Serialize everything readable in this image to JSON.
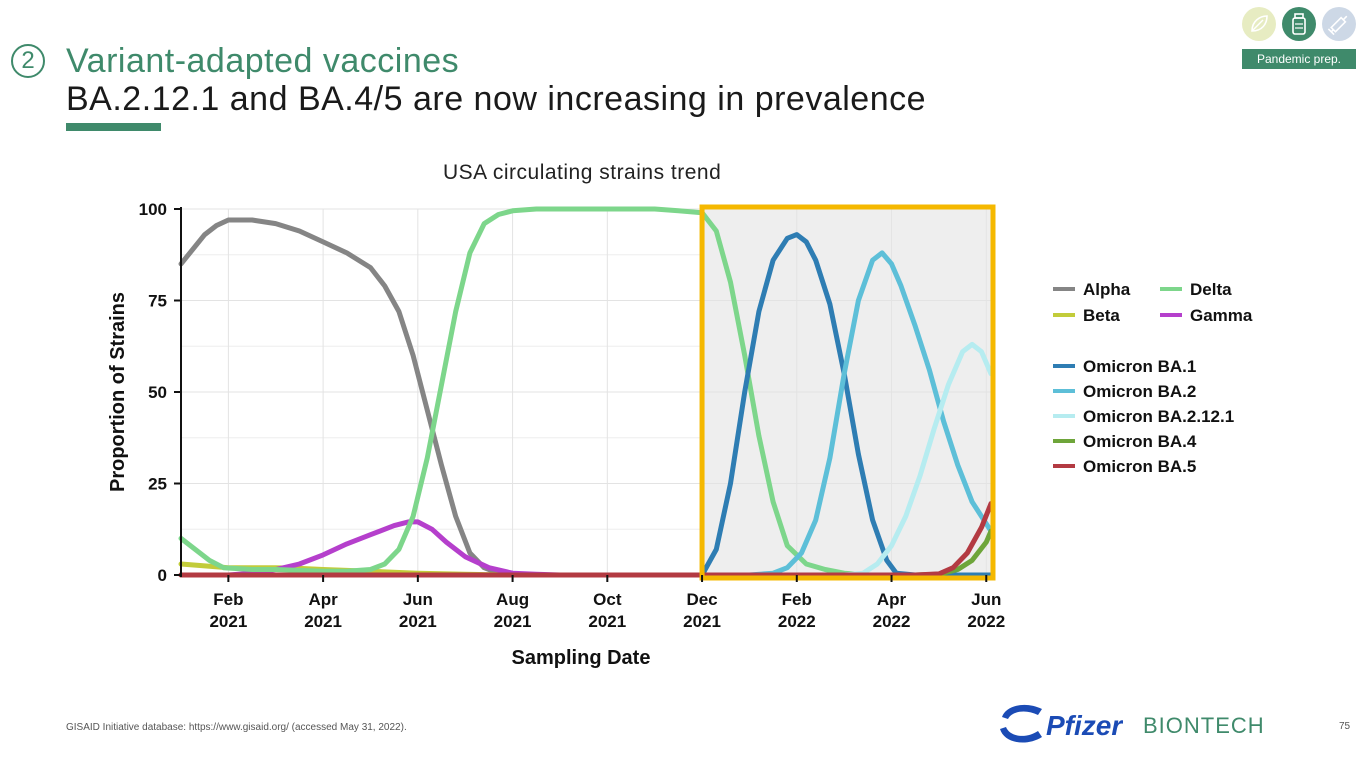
{
  "header": {
    "step_number": "2",
    "title": "Variant-adapted vaccines",
    "subtitle": "BA.2.12.1 and BA.4/5 are now increasing in prevalence",
    "section_tag": "Pandemic prep.",
    "badge_icons": [
      "leaf-icon",
      "vial-icon",
      "syringe-icon"
    ]
  },
  "colors": {
    "brand_green": "#3f8a6b",
    "highlight_box": "#f5b800",
    "highlight_fill": "#eeeeee"
  },
  "footer": {
    "footnote": "GISAID Initiative database: https://www.gisaid.org/ (accessed May 31, 2022).",
    "page_number": "75",
    "logo_pfizer": "Pfizer",
    "logo_biontech": "BIONTECH"
  },
  "chart_data": {
    "type": "line",
    "title": "USA circulating strains trend",
    "xlabel": "Sampling Date",
    "ylabel": "Proportion of Strains",
    "ylim": [
      0,
      100
    ],
    "xlim_months": [
      0,
      17.1
    ],
    "x_unit": "months since Jan 2021",
    "yticks": [
      0,
      25,
      50,
      75,
      100
    ],
    "xticks": [
      {
        "value": 1,
        "label1": "Feb",
        "label2": "2021"
      },
      {
        "value": 3,
        "label1": "Apr",
        "label2": "2021"
      },
      {
        "value": 5,
        "label1": "Jun",
        "label2": "2021"
      },
      {
        "value": 7,
        "label1": "Aug",
        "label2": "2021"
      },
      {
        "value": 9,
        "label1": "Oct",
        "label2": "2021"
      },
      {
        "value": 11,
        "label1": "Dec",
        "label2": "2021"
      },
      {
        "value": 13,
        "label1": "Feb",
        "label2": "2022"
      },
      {
        "value": 15,
        "label1": "Apr",
        "label2": "2022"
      },
      {
        "value": 17,
        "label1": "Jun",
        "label2": "2022"
      }
    ],
    "highlight_range": [
      11,
      17.1
    ],
    "legend_placement": "right",
    "legend_groups": [
      {
        "columns": 2,
        "entries": [
          "Alpha",
          "Delta",
          "Beta",
          "Gamma"
        ]
      },
      {
        "columns": 1,
        "entries": [
          "Omicron BA.1",
          "Omicron BA.2",
          "Omicron BA.2.12.1",
          "Omicron BA.4",
          "Omicron BA.5"
        ]
      }
    ],
    "series": [
      {
        "name": "Alpha",
        "color": "#858585",
        "x": [
          0,
          0.25,
          0.5,
          0.75,
          1,
          1.5,
          2,
          2.5,
          3,
          3.5,
          4,
          4.3,
          4.6,
          4.9,
          5.2,
          5.5,
          5.8,
          6.1,
          6.4,
          6.7,
          7,
          7.5,
          8,
          9,
          10,
          11
        ],
        "values": [
          85,
          89,
          93,
          95.5,
          97,
          97,
          96,
          94,
          91,
          88,
          84,
          79,
          72,
          60,
          45,
          30,
          16,
          6,
          2,
          0.5,
          0.2,
          0,
          0,
          0,
          0,
          0
        ]
      },
      {
        "name": "Beta",
        "color": "#c2cc3a",
        "x": [
          0,
          0.5,
          1,
          1.5,
          2,
          2.5,
          3,
          4,
          5,
          6,
          7,
          8,
          11
        ],
        "values": [
          3,
          2.5,
          2,
          2,
          2,
          1.8,
          1.5,
          1,
          0.5,
          0.2,
          0,
          0,
          0
        ]
      },
      {
        "name": "Gamma",
        "color": "#b53fcc",
        "x": [
          0,
          1,
          1.5,
          2,
          2.5,
          3,
          3.5,
          4,
          4.5,
          4.8,
          5,
          5.3,
          5.6,
          6,
          6.5,
          7,
          7.5,
          8,
          9,
          10,
          11
        ],
        "values": [
          0,
          0,
          0.5,
          1.5,
          3,
          5.5,
          8.5,
          11,
          13.5,
          14.5,
          14.5,
          12.5,
          9,
          5,
          2,
          0.5,
          0.2,
          0,
          0,
          0,
          0
        ]
      },
      {
        "name": "Delta",
        "color": "#7dd68b",
        "x": [
          0,
          0.3,
          0.6,
          0.9,
          1.5,
          2,
          3,
          3.5,
          4,
          4.3,
          4.6,
          4.9,
          5.2,
          5.5,
          5.8,
          6.1,
          6.4,
          6.7,
          7,
          7.5,
          8,
          9,
          10,
          10.5,
          11,
          11.3,
          11.6,
          11.9,
          12.2,
          12.5,
          12.8,
          13.2,
          13.6,
          14,
          14.5
        ],
        "values": [
          10,
          7,
          4,
          2,
          1.5,
          1.5,
          1,
          1,
          1.5,
          3,
          7,
          16,
          32,
          52,
          72,
          88,
          96,
          98.5,
          99.5,
          100,
          100,
          100,
          100,
          99.5,
          99,
          94,
          80,
          60,
          38,
          20,
          8,
          3,
          1.5,
          0.5,
          0
        ]
      },
      {
        "name": "Omicron BA.1",
        "color": "#2e7db3",
        "x": [
          11,
          11.3,
          11.6,
          11.9,
          12.2,
          12.5,
          12.8,
          13,
          13.2,
          13.4,
          13.7,
          14,
          14.3,
          14.6,
          14.9,
          15.1,
          15.5,
          17.1
        ],
        "values": [
          0,
          7,
          25,
          50,
          72,
          86,
          92,
          93,
          91,
          86,
          74,
          55,
          33,
          15,
          4,
          0.5,
          0,
          0
        ]
      },
      {
        "name": "Omicron BA.2",
        "color": "#5dbfd8",
        "x": [
          11,
          12,
          12.5,
          12.8,
          13.1,
          13.4,
          13.7,
          14,
          14.3,
          14.6,
          14.8,
          15,
          15.2,
          15.5,
          15.8,
          16.1,
          16.4,
          16.7,
          17.1
        ],
        "values": [
          0,
          0,
          0.5,
          2,
          6,
          15,
          32,
          55,
          75,
          86,
          88,
          85,
          79,
          68,
          56,
          42,
          30,
          20,
          12
        ]
      },
      {
        "name": "Omicron BA.2.12.1",
        "color": "#b6ecf0",
        "x": [
          11,
          14,
          14.4,
          14.7,
          15,
          15.3,
          15.6,
          15.9,
          16.2,
          16.5,
          16.7,
          16.9,
          17.1
        ],
        "values": [
          0,
          0,
          0.5,
          3,
          8,
          16,
          27,
          40,
          52,
          61,
          63,
          61,
          55
        ]
      },
      {
        "name": "Omicron BA.4",
        "color": "#6ea53a",
        "x": [
          0,
          11,
          15.5,
          16,
          16.4,
          16.7,
          17,
          17.1
        ],
        "values": [
          0,
          0,
          0,
          0.2,
          1.5,
          4,
          9,
          12
        ]
      },
      {
        "name": "Omicron BA.5",
        "color": "#b33a42",
        "x": [
          0,
          11,
          15.5,
          16,
          16.3,
          16.6,
          16.9,
          17.1
        ],
        "values": [
          0,
          0,
          0,
          0.3,
          2,
          6,
          13,
          19.5
        ]
      }
    ]
  }
}
